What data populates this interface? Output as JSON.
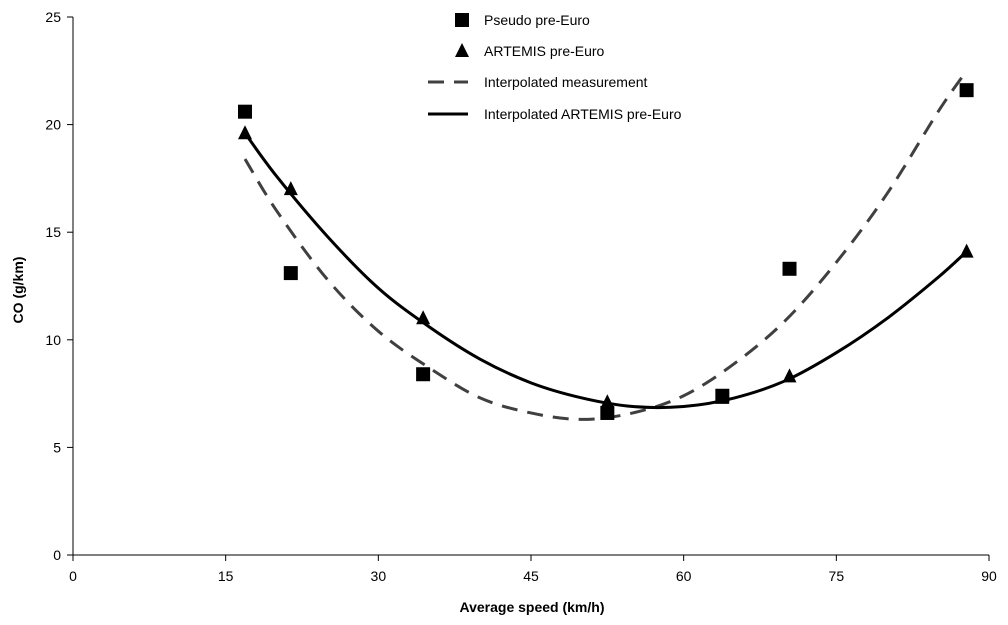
{
  "chart_data": {
    "type": "scatter",
    "xlabel": "Average speed (km/h)",
    "ylabel": "CO (g/km)",
    "xlim": [
      0,
      90
    ],
    "ylim": [
      0,
      25
    ],
    "x_ticks": [
      0,
      15,
      30,
      45,
      60,
      75,
      90
    ],
    "y_ticks": [
      0,
      5,
      10,
      15,
      20,
      25
    ],
    "grid": false,
    "legend_position": "top-center",
    "series": [
      {
        "name": "Pseudo pre-Euro",
        "kind": "markers",
        "marker": "square",
        "color": "#000000",
        "x": [
          16.9,
          21.4,
          34.4,
          52.5,
          63.8,
          70.4,
          87.8
        ],
        "y": [
          20.6,
          13.1,
          8.4,
          6.6,
          7.4,
          13.3,
          21.6
        ]
      },
      {
        "name": "ARTEMIS pre-Euro",
        "kind": "markers",
        "marker": "triangle",
        "color": "#000000",
        "x": [
          16.9,
          21.4,
          34.4,
          52.5,
          63.8,
          70.4,
          87.8
        ],
        "y": [
          19.6,
          17.0,
          11.0,
          7.1,
          7.3,
          8.3,
          14.1
        ]
      },
      {
        "name": "Interpolated measurement",
        "kind": "line",
        "style": "dashed",
        "color": "#404040",
        "x": [
          16.9,
          20,
          25,
          30,
          35,
          40,
          45,
          50,
          55,
          60,
          65,
          70,
          75,
          80,
          85,
          87.8
        ],
        "y": [
          18.4,
          16.0,
          12.8,
          10.4,
          8.7,
          7.3,
          6.6,
          6.3,
          6.6,
          7.4,
          8.9,
          10.9,
          13.6,
          16.8,
          20.6,
          22.5
        ]
      },
      {
        "name": "Interpolated ARTEMIS pre-Euro",
        "kind": "line",
        "style": "solid",
        "color": "#000000",
        "x": [
          16.9,
          20,
          25,
          30,
          35,
          40,
          45,
          50,
          55,
          60,
          65,
          70,
          75,
          80,
          85,
          87.8
        ],
        "y": [
          19.6,
          17.6,
          14.8,
          12.4,
          10.6,
          9.1,
          8.0,
          7.3,
          6.9,
          6.9,
          7.3,
          8.1,
          9.4,
          11.0,
          12.9,
          14.1
        ]
      }
    ]
  }
}
